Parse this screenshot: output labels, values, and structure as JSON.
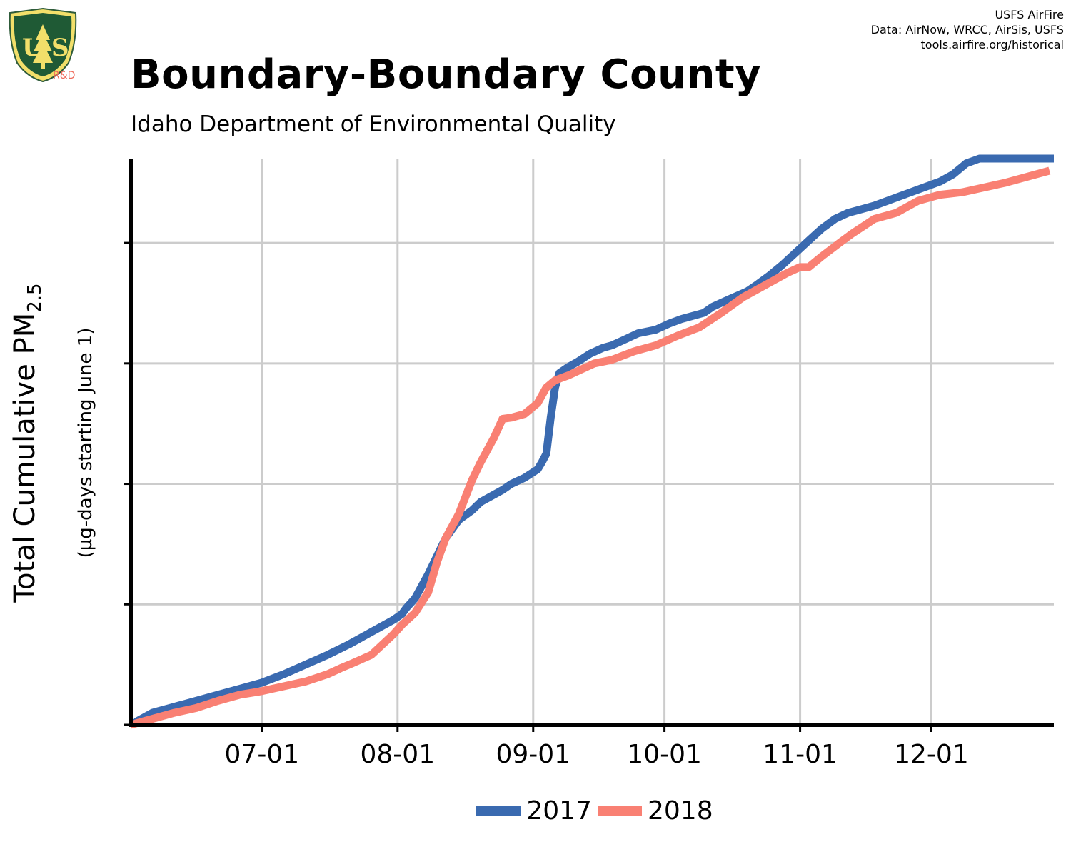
{
  "header": {
    "title": "Boundary-Boundary County",
    "subtitle": "Idaho Department of Environmental Quality",
    "credits": [
      "USFS AirFire",
      "Data: AirNow, WRCC, AirSis, USFS",
      "tools.airfire.org/historical"
    ],
    "logo_text": "R&D"
  },
  "colors": {
    "series_2017": "#3a6ab0",
    "series_2018": "#f98073",
    "grid": "#cccccc",
    "axis": "#000000"
  },
  "chart_data": {
    "type": "line",
    "ylabel_main": "Total Cumulative PM",
    "ylabel_sub": "2.5",
    "ylabel_units": "(µg-days starting June 1)",
    "xlabel": "",
    "x_ticks": [
      "07-01",
      "08-01",
      "09-01",
      "10-01",
      "11-01",
      "12-01"
    ],
    "x_tick_days": [
      30,
      61,
      92,
      122,
      153,
      183
    ],
    "xlim": [
      0,
      211
    ],
    "ylim": [
      0,
      4.7
    ],
    "y_grid": [
      1,
      2,
      3,
      4
    ],
    "grid": true,
    "legend_position": "bottom",
    "series": [
      {
        "name": "2017",
        "x": [
          0,
          5,
          10,
          15,
          20,
          25,
          30,
          35,
          40,
          45,
          50,
          55,
          60,
          62,
          63,
          65,
          68,
          70,
          72,
          75,
          78,
          80,
          85,
          87,
          90,
          93,
          94,
          95,
          96,
          97,
          98,
          100,
          102,
          105,
          108,
          110,
          113,
          116,
          120,
          123,
          126,
          131,
          133,
          136,
          141,
          143,
          146,
          149,
          152,
          155,
          158,
          161,
          164,
          167,
          170,
          173,
          176,
          179,
          182,
          185,
          188,
          191,
          194,
          197,
          200,
          203,
          206,
          211
        ],
        "y": [
          0.0,
          0.1,
          0.15,
          0.2,
          0.25,
          0.3,
          0.35,
          0.42,
          0.5,
          0.58,
          0.67,
          0.77,
          0.87,
          0.92,
          0.97,
          1.05,
          1.25,
          1.4,
          1.55,
          1.7,
          1.78,
          1.85,
          1.95,
          2.0,
          2.05,
          2.12,
          2.18,
          2.25,
          2.55,
          2.8,
          2.92,
          2.97,
          3.01,
          3.08,
          3.13,
          3.15,
          3.2,
          3.25,
          3.28,
          3.33,
          3.37,
          3.42,
          3.47,
          3.52,
          3.6,
          3.65,
          3.73,
          3.82,
          3.92,
          4.02,
          4.12,
          4.2,
          4.25,
          4.28,
          4.31,
          4.35,
          4.39,
          4.43,
          4.47,
          4.51,
          4.57,
          4.66,
          4.7,
          4.7,
          4.7,
          4.7,
          4.7,
          4.7
        ]
      },
      {
        "name": "2018",
        "x": [
          0,
          5,
          10,
          15,
          20,
          25,
          30,
          35,
          40,
          45,
          48,
          50,
          55,
          60,
          62,
          65,
          68,
          70,
          72,
          75,
          78,
          80,
          83,
          85,
          87,
          90,
          93,
          95,
          97,
          100,
          103,
          106,
          110,
          115,
          120,
          125,
          130,
          135,
          140,
          145,
          150,
          153,
          155,
          158,
          162,
          165,
          170,
          175,
          180,
          185,
          190,
          195,
          200,
          205,
          210
        ],
        "y": [
          0.0,
          0.05,
          0.1,
          0.14,
          0.2,
          0.25,
          0.28,
          0.32,
          0.36,
          0.42,
          0.47,
          0.5,
          0.58,
          0.75,
          0.83,
          0.93,
          1.1,
          1.35,
          1.55,
          1.75,
          2.03,
          2.18,
          2.38,
          2.54,
          2.55,
          2.58,
          2.67,
          2.8,
          2.86,
          2.9,
          2.95,
          3.0,
          3.03,
          3.1,
          3.15,
          3.23,
          3.3,
          3.42,
          3.55,
          3.65,
          3.75,
          3.8,
          3.8,
          3.89,
          4.0,
          4.08,
          4.2,
          4.25,
          4.35,
          4.4,
          4.42,
          4.46,
          4.5,
          4.55,
          4.6
        ]
      }
    ]
  }
}
